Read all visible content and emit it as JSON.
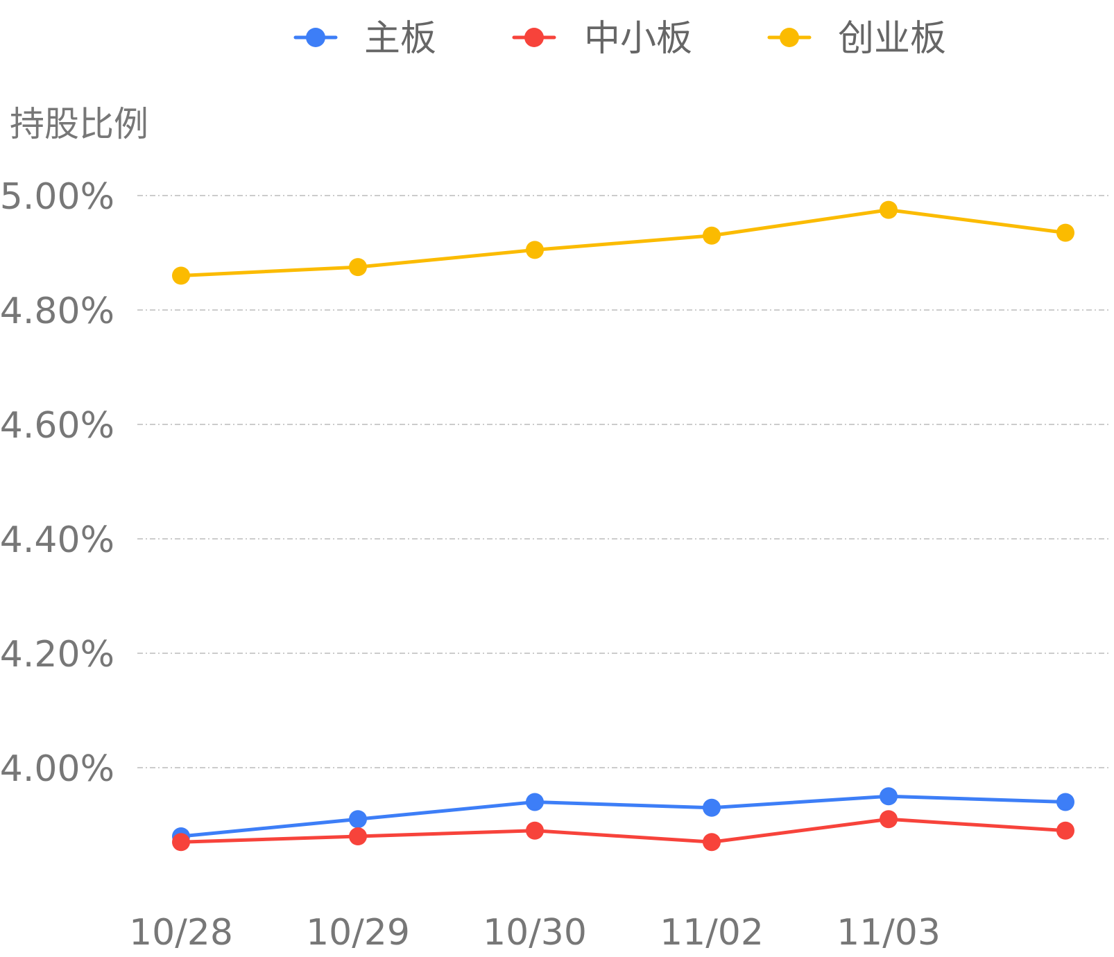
{
  "chart_data": {
    "type": "line",
    "ylabel": "持股比例",
    "x": [
      "10/28",
      "10/29",
      "10/30",
      "11/02",
      "11/03",
      ""
    ],
    "y_ticks": [
      "5.00%",
      "4.80%",
      "4.60%",
      "4.40%",
      "4.20%",
      "4.00%"
    ],
    "y_tick_values": [
      5.0,
      4.8,
      4.6,
      4.4,
      4.2,
      4.0
    ],
    "ylim": [
      3.8,
      5.0
    ],
    "grid": true,
    "legend_position": "top-center",
    "series": [
      {
        "name": "主板",
        "color": "#3d7ef7",
        "values": [
          3.88,
          3.91,
          3.94,
          3.93,
          3.95,
          3.94
        ]
      },
      {
        "name": "中小板",
        "color": "#f7433b",
        "values": [
          3.87,
          3.88,
          3.89,
          3.87,
          3.91,
          3.89
        ]
      },
      {
        "name": "创业板",
        "color": "#fbbb00",
        "values": [
          4.86,
          4.875,
          4.905,
          4.93,
          4.975,
          4.935
        ]
      }
    ]
  }
}
